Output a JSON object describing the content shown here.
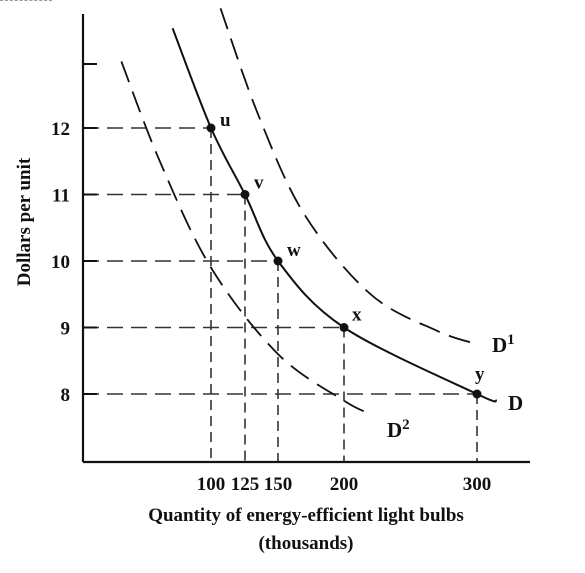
{
  "chart_data": {
    "type": "line",
    "xlabel": "Quantity of energy-efficient light bulbs",
    "xlabel_sub": "(thousands)",
    "ylabel": "Dollars per unit",
    "x_ticks": [
      "100",
      "125",
      "150",
      "200",
      "300"
    ],
    "y_ticks": [
      "12",
      "11",
      "10",
      "9",
      "8"
    ],
    "xlim": [
      0,
      340
    ],
    "ylim": [
      6.9,
      13.8
    ],
    "series": [
      {
        "name": "D",
        "style": "solid",
        "points": [
          [
            70,
            13.5
          ],
          [
            100,
            12
          ],
          [
            125,
            11
          ],
          [
            150,
            10
          ],
          [
            200,
            9
          ],
          [
            300,
            8
          ],
          [
            315,
            7.9
          ]
        ]
      },
      {
        "name": "D1",
        "style": "dashed",
        "points": [
          [
            107,
            13.8
          ],
          [
            135,
            12.2
          ],
          [
            170,
            10.7
          ],
          [
            220,
            9.5
          ],
          [
            270,
            8.95
          ],
          [
            300,
            8.75
          ]
        ]
      },
      {
        "name": "D2",
        "style": "dashed",
        "points": [
          [
            30,
            13
          ],
          [
            60,
            11.5
          ],
          [
            100,
            9.9
          ],
          [
            150,
            8.6
          ],
          [
            200,
            7.9
          ],
          [
            220,
            7.7
          ]
        ]
      }
    ],
    "labeled_points": [
      {
        "label": "u",
        "x": 100,
        "y": 12
      },
      {
        "label": "v",
        "x": 125,
        "y": 11
      },
      {
        "label": "w",
        "x": 150,
        "y": 10
      },
      {
        "label": "x",
        "x": 200,
        "y": 9
      },
      {
        "label": "y",
        "x": 300,
        "y": 8
      }
    ],
    "curve_labels": [
      {
        "base": "D",
        "sup": ""
      },
      {
        "base": "D",
        "sup": "1"
      },
      {
        "base": "D",
        "sup": "2"
      }
    ],
    "grid": false
  }
}
